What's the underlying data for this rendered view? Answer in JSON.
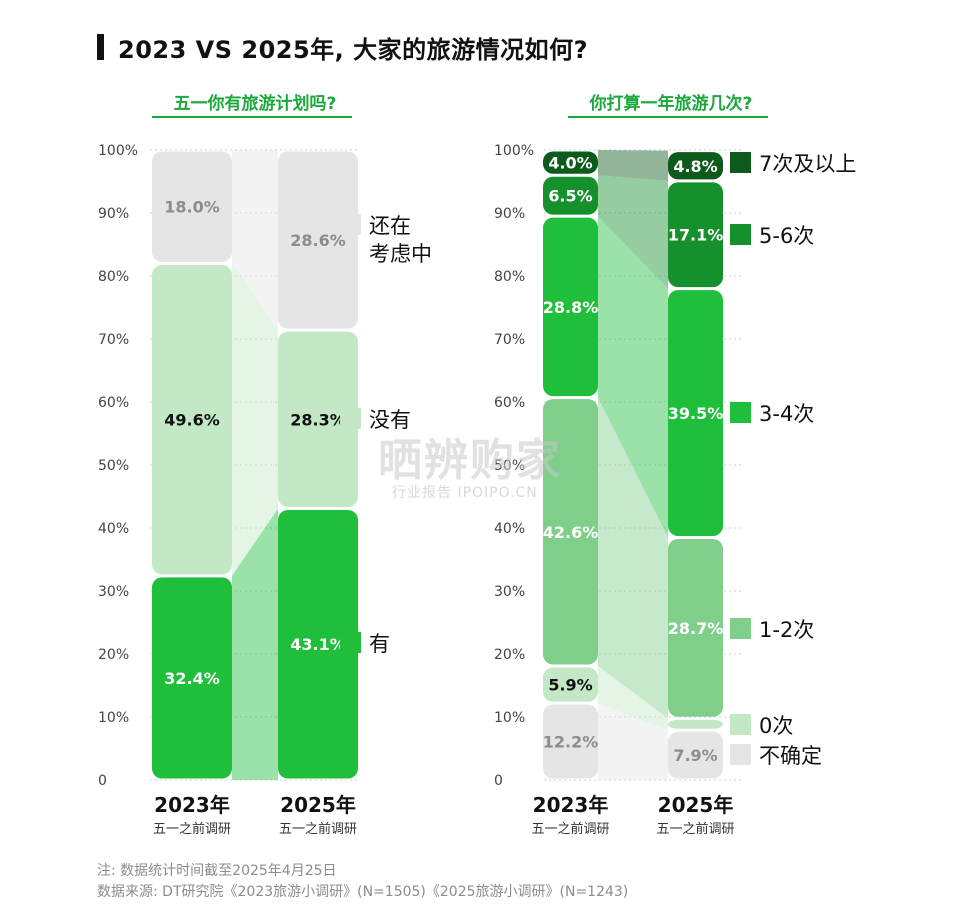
{
  "title": "2023 VS 2025年, 大家的旅游情况如何?",
  "notes": {
    "line1": "注: 数据统计时间截至2025年4月25日",
    "line2": "数据来源: DT研究院《2023旅游小调研》(N=1505)《2025旅游小调研》(N=1243)"
  },
  "watermark": {
    "main": "晒辨购家",
    "sub": "行业报告 IPOIPO.CN"
  },
  "charts": {
    "left_subtitle": "五一你有旅游计划吗?",
    "right_subtitle": "你打算一年旅游几次?"
  },
  "chart_data": [
    {
      "type": "bar",
      "stacked": true,
      "title": "五一你有旅游计划吗?",
      "categories": [
        "2023年",
        "2025年"
      ],
      "category_sublabels": [
        "五一之前调研",
        "五一之前调研"
      ],
      "y_ticks": [
        "0",
        "10%",
        "20%",
        "30%",
        "40%",
        "50%",
        "60%",
        "70%",
        "80%",
        "90%",
        "100%"
      ],
      "ylim": [
        0,
        100
      ],
      "series": [
        {
          "name": "有",
          "values": [
            32.4,
            43.1
          ],
          "color": "#1fbf3c",
          "labels": [
            "32.4%",
            "43.1%"
          ],
          "label_color": "#ffffff"
        },
        {
          "name": "没有",
          "values": [
            49.6,
            28.3
          ],
          "color": "#c3e8c6",
          "labels": [
            "49.6%",
            "28.3%"
          ],
          "label_color": "#111111"
        },
        {
          "name": "还在\n考虑中",
          "values": [
            18.0,
            28.6
          ],
          "color": "#e5e5e5",
          "labels": [
            "18.0%",
            "28.6%"
          ],
          "label_color": "#8c8c8c"
        }
      ],
      "legend_lines": [
        [
          "还在",
          "考虑中"
        ],
        [
          "没有"
        ],
        [
          "有"
        ]
      ]
    },
    {
      "type": "bar",
      "stacked": true,
      "title": "你打算一年旅游几次?",
      "categories": [
        "2023年",
        "2025年"
      ],
      "category_sublabels": [
        "五一之前调研",
        "五一之前调研"
      ],
      "y_ticks": [
        "0",
        "10%",
        "20%",
        "30%",
        "40%",
        "50%",
        "60%",
        "70%",
        "80%",
        "90%",
        "100%"
      ],
      "ylim": [
        0,
        100
      ],
      "series": [
        {
          "name": "不确定",
          "values": [
            12.2,
            7.9
          ],
          "color": "#e5e5e5",
          "labels": [
            "12.2%",
            "7.9%"
          ],
          "label_color": "#8c8c8c"
        },
        {
          "name": "0次",
          "values": [
            5.9,
            1.9
          ],
          "color": "#c3e8c6",
          "labels": [
            "5.9%",
            ""
          ],
          "label_color": "#111111"
        },
        {
          "name": "1-2次",
          "values": [
            42.6,
            28.7
          ],
          "color": "#7fcf8a",
          "labels": [
            "42.6%",
            "28.7%"
          ],
          "label_color": "#ffffff"
        },
        {
          "name": "3-4次",
          "values": [
            28.8,
            39.5
          ],
          "color": "#1fbf3c",
          "labels": [
            "28.8%",
            "39.5%"
          ],
          "label_color": "#ffffff"
        },
        {
          "name": "5-6次",
          "values": [
            6.5,
            17.1
          ],
          "color": "#15902c",
          "labels": [
            "6.5%",
            "17.1%"
          ],
          "label_color": "#ffffff"
        },
        {
          "name": "7次及以上",
          "values": [
            4.0,
            4.8
          ],
          "color": "#0d5a1d",
          "labels": [
            "4.0%",
            "4.8%"
          ],
          "label_color": "#ffffff"
        }
      ],
      "legend_lines": [
        [
          "7次及以上"
        ],
        [
          "5-6次"
        ],
        [
          "3-4次"
        ],
        [
          "1-2次"
        ],
        [
          "0次"
        ],
        [
          "不确定"
        ]
      ]
    }
  ]
}
